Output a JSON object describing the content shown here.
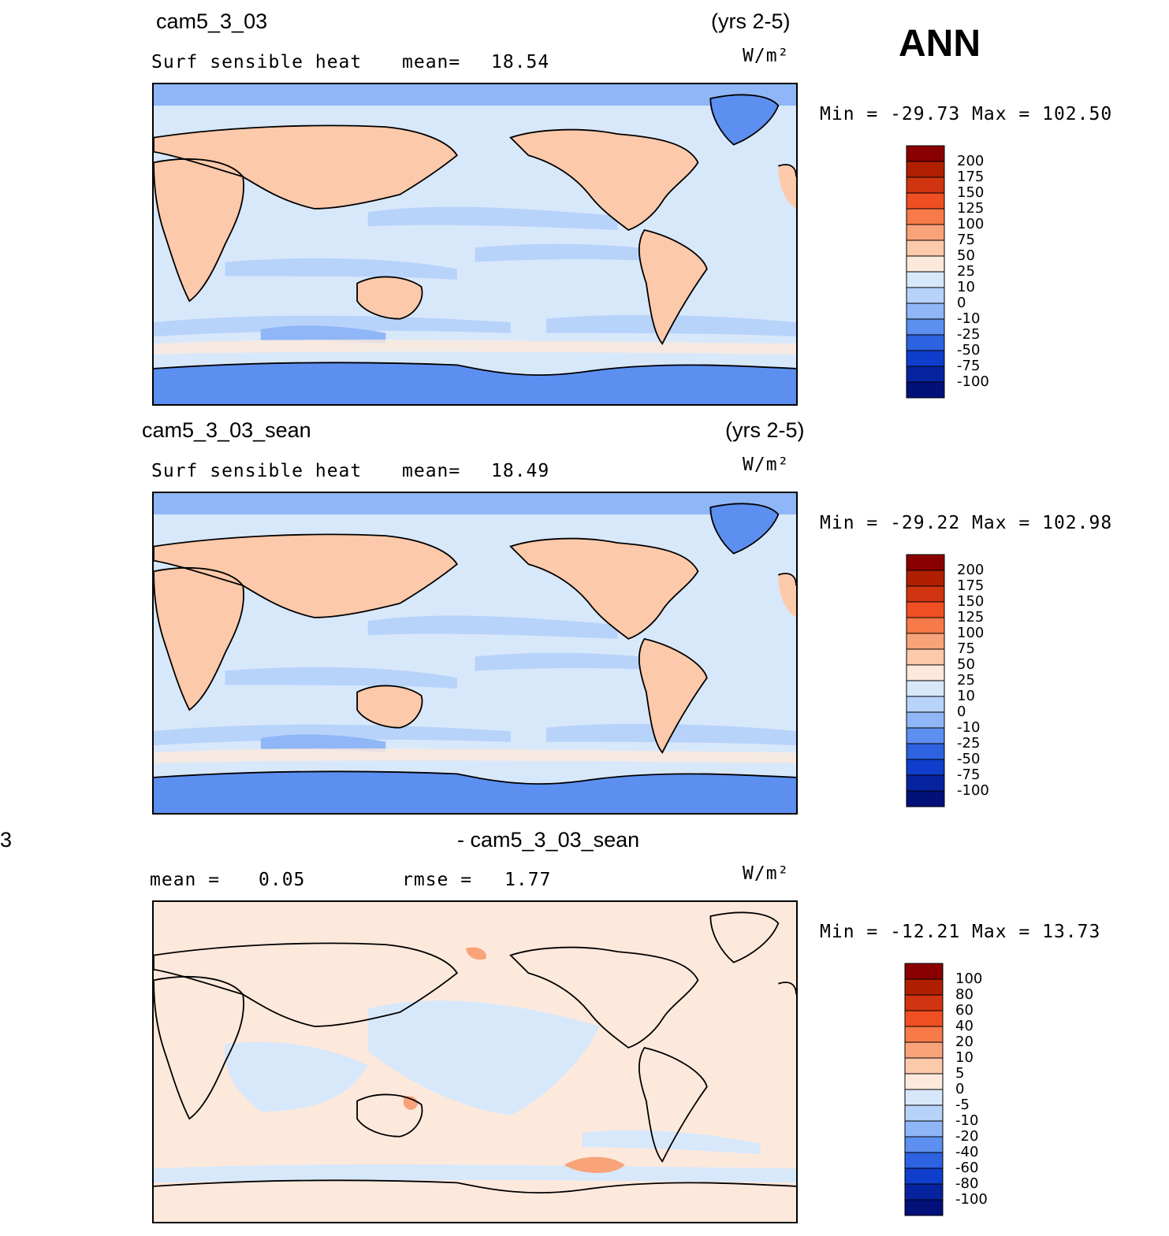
{
  "season": "ANN",
  "panels": [
    {
      "case_label": "cam5_3_03",
      "years": "(yrs 2-5)",
      "variable": "Surf sensible heat",
      "stat_label": "mean=",
      "stat_value": "18.54",
      "units": "W/m²",
      "minmax": "Min = -29.73  Max = 102.50",
      "legend_levels": [
        "200",
        "175",
        "150",
        "125",
        "100",
        "75",
        "50",
        "25",
        "10",
        "0",
        "-10",
        "-25",
        "-50",
        "-75",
        "-100"
      ],
      "legend_colors": [
        "#8a0000",
        "#b02000",
        "#d03410",
        "#ef4f22",
        "#f77a48",
        "#f9a37a",
        "#fcc9aa",
        "#fde9dc",
        "#d8e8fb",
        "#b8d3fa",
        "#8fb6f6",
        "#5c8ff0",
        "#2d62e0",
        "#0f3dcc",
        "#06239f",
        "#02107a"
      ]
    },
    {
      "case_label": "cam5_3_03_sean",
      "years": "(yrs 2-5)",
      "variable": "Surf sensible heat",
      "stat_label": "mean=",
      "stat_value": "18.49",
      "units": "W/m²",
      "minmax": "Min = -29.22  Max = 102.98",
      "legend_levels": [
        "200",
        "175",
        "150",
        "125",
        "100",
        "75",
        "50",
        "25",
        "10",
        "0",
        "-10",
        "-25",
        "-50",
        "-75",
        "-100"
      ],
      "legend_colors": [
        "#8a0000",
        "#b02000",
        "#d03410",
        "#ef4f22",
        "#f77a48",
        "#f9a37a",
        "#fcc9aa",
        "#fde9dc",
        "#d8e8fb",
        "#b8d3fa",
        "#8fb6f6",
        "#5c8ff0",
        "#2d62e0",
        "#0f3dcc",
        "#06239f",
        "#02107a"
      ]
    },
    {
      "case_label_left": "3",
      "case_label": "- cam5_3_03_sean",
      "stat1_label": "mean =",
      "stat1_value": "0.05",
      "stat2_label": "rmse =",
      "stat2_value": "1.77",
      "units": "W/m²",
      "minmax": "Min = -12.21  Max =   13.73",
      "legend_levels": [
        "100",
        "80",
        "60",
        "40",
        "20",
        "10",
        "5",
        "0",
        "-5",
        "-10",
        "-20",
        "-40",
        "-60",
        "-80",
        "-100"
      ],
      "legend_colors": [
        "#8a0000",
        "#b02000",
        "#d03410",
        "#ef4f22",
        "#f77a48",
        "#f9a37a",
        "#fcc9aa",
        "#fde9dc",
        "#d8e8fb",
        "#b8d3fa",
        "#8fb6f6",
        "#5c8ff0",
        "#2d62e0",
        "#0f3dcc",
        "#06239f",
        "#02107a"
      ]
    }
  ]
}
